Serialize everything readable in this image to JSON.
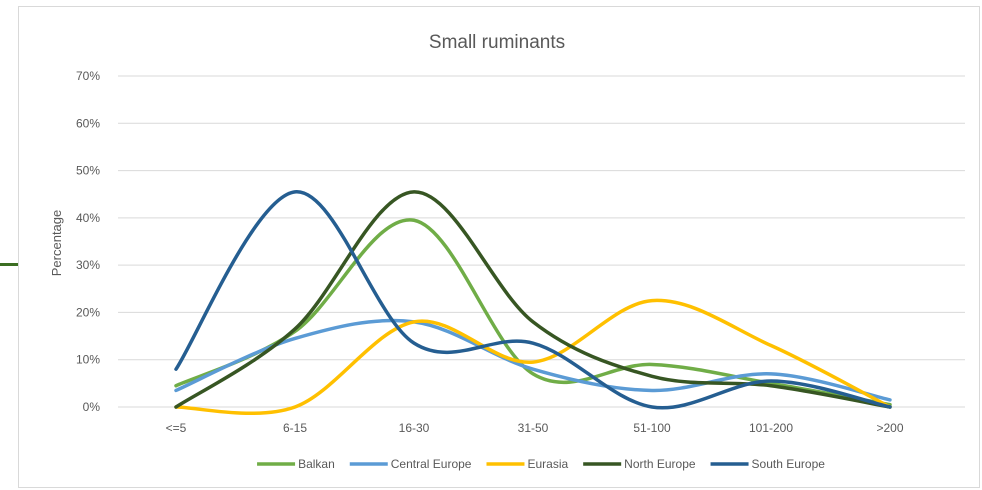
{
  "chart_data": {
    "type": "line",
    "title": "Small ruminants",
    "ylabel": "Percentage",
    "xlabel": "",
    "categories": [
      "<=5",
      "6-15",
      "16-30",
      "31-50",
      "51-100",
      "101-200",
      ">200"
    ],
    "y_ticks": [
      "0%",
      "10%",
      "20%",
      "30%",
      "40%",
      "50%",
      "60%",
      "70%"
    ],
    "ylim": [
      0,
      70
    ],
    "grid": true,
    "smooth": true,
    "legend_position": "bottom",
    "series": [
      {
        "name": "Balkan",
        "color": "#70ad47",
        "values": [
          4.5,
          16,
          39.5,
          7,
          9,
          5,
          0.5
        ]
      },
      {
        "name": "Central Europe",
        "color": "#5b9bd5",
        "values": [
          3.5,
          14.5,
          18,
          8,
          3.5,
          7,
          1.5
        ]
      },
      {
        "name": "Eurasia",
        "color": "#ffc000",
        "values": [
          0,
          0,
          18,
          9.5,
          22.5,
          13,
          0
        ]
      },
      {
        "name": "North Europe",
        "color": "#375623",
        "values": [
          0,
          16.5,
          45.5,
          18,
          6.5,
          4.5,
          0
        ]
      },
      {
        "name": "South Europe",
        "color": "#255e91",
        "values": [
          8,
          45.5,
          13.5,
          13.5,
          0,
          5.5,
          0
        ]
      }
    ]
  }
}
